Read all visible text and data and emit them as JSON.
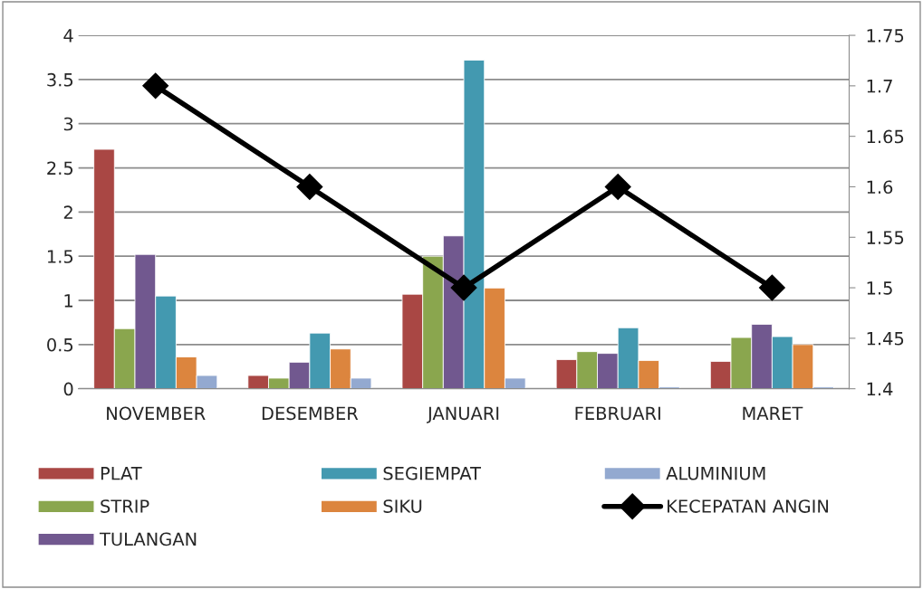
{
  "chart_data": {
    "type": "bar",
    "categories": [
      "NOVEMBER",
      "DESEMBER",
      "JANUARI",
      "FEBRUARI",
      "MARET"
    ],
    "series": [
      {
        "name": "PLAT",
        "color": "#a94744",
        "values": [
          2.71,
          0.15,
          1.07,
          0.33,
          0.31
        ]
      },
      {
        "name": "STRIP",
        "color": "#8aa64e",
        "values": [
          0.68,
          0.12,
          1.5,
          0.42,
          0.58
        ]
      },
      {
        "name": "TULANGAN",
        "color": "#71588f",
        "values": [
          1.52,
          0.3,
          1.73,
          0.4,
          0.73
        ]
      },
      {
        "name": "SEGIEMPAT",
        "color": "#4399b0",
        "values": [
          1.05,
          0.63,
          3.72,
          0.69,
          0.59
        ]
      },
      {
        "name": "SIKU",
        "color": "#dc853e",
        "values": [
          0.36,
          0.45,
          1.14,
          0.32,
          0.5
        ]
      },
      {
        "name": "ALUMINIUM",
        "color": "#93a9d0",
        "values": [
          0.15,
          0.12,
          0.12,
          0.02,
          0.02
        ]
      },
      {
        "name": "KECEPATAN ANGIN",
        "color": "#000000",
        "type": "line",
        "axis": "y2",
        "marker": "diamond",
        "values": [
          1.7,
          1.6,
          1.5,
          1.6,
          1.5
        ]
      }
    ],
    "ylim": [
      0,
      4
    ],
    "yticks": [
      0,
      0.5,
      1,
      1.5,
      2,
      2.5,
      3,
      3.5,
      4
    ],
    "y2lim": [
      1.4,
      1.75
    ],
    "y2ticks": [
      1.4,
      1.45,
      1.5,
      1.55,
      1.6,
      1.65,
      1.7,
      1.75
    ],
    "grid": "y",
    "legend": "bottom"
  }
}
